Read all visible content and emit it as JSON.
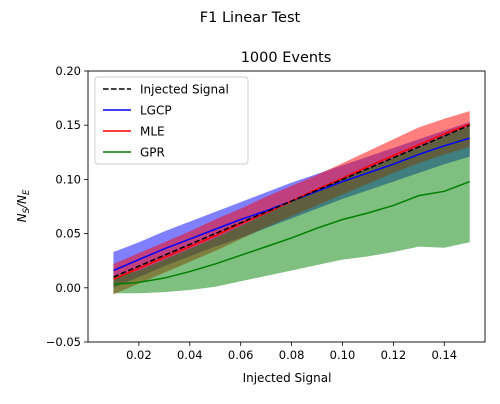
{
  "chart_data": {
    "type": "line",
    "suptitle": "F1 Linear Test",
    "title": "1000 Events",
    "xlabel": "Injected Signal",
    "ylabel_main": "N",
    "ylabel_num_sub": "S",
    "ylabel_slash": "/",
    "ylabel_den_sub": "E",
    "xlim": [
      0.0,
      0.156
    ],
    "ylim": [
      -0.05,
      0.2
    ],
    "xticks": [
      0.02,
      0.04,
      0.06,
      0.08,
      0.1,
      0.12,
      0.14
    ],
    "xtick_labels": [
      "0.02",
      "0.04",
      "0.06",
      "0.08",
      "0.10",
      "0.12",
      "0.14"
    ],
    "yticks": [
      -0.05,
      0.0,
      0.05,
      0.1,
      0.15,
      0.2
    ],
    "ytick_labels": [
      "−0.05",
      "0.00",
      "0.05",
      "0.10",
      "0.15",
      "0.20"
    ],
    "grid": false,
    "legend_position": "top-left",
    "x": [
      0.01,
      0.02,
      0.03,
      0.04,
      0.05,
      0.06,
      0.07,
      0.08,
      0.09,
      0.1,
      0.11,
      0.12,
      0.13,
      0.14,
      0.15
    ],
    "series": [
      {
        "name": "Injected Signal",
        "color": "#000000",
        "dash": true,
        "values": [
          0.01,
          0.02,
          0.03,
          0.04,
          0.05,
          0.06,
          0.07,
          0.08,
          0.09,
          0.1,
          0.11,
          0.12,
          0.13,
          0.14,
          0.15
        ]
      },
      {
        "name": "LGCP",
        "color": "#0000ff",
        "band_color": "#0000ff",
        "values": [
          0.016,
          0.026,
          0.036,
          0.045,
          0.054,
          0.063,
          0.071,
          0.08,
          0.089,
          0.098,
          0.106,
          0.114,
          0.123,
          0.131,
          0.138
        ],
        "lower": [
          0.0,
          0.01,
          0.02,
          0.029,
          0.038,
          0.046,
          0.055,
          0.064,
          0.073,
          0.082,
          0.09,
          0.098,
          0.106,
          0.114,
          0.121
        ],
        "upper": [
          0.033,
          0.042,
          0.052,
          0.061,
          0.07,
          0.079,
          0.088,
          0.097,
          0.105,
          0.113,
          0.121,
          0.129,
          0.137,
          0.145,
          0.153
        ]
      },
      {
        "name": "MLE",
        "color": "#ff0000",
        "band_color": "#ff0000",
        "values": [
          0.008,
          0.018,
          0.028,
          0.038,
          0.048,
          0.059,
          0.069,
          0.08,
          0.091,
          0.101,
          0.112,
          0.122,
          0.132,
          0.142,
          0.151
        ],
        "lower": [
          -0.006,
          0.004,
          0.014,
          0.024,
          0.034,
          0.045,
          0.056,
          0.066,
          0.076,
          0.086,
          0.096,
          0.106,
          0.115,
          0.123,
          0.13
        ],
        "upper": [
          0.022,
          0.032,
          0.042,
          0.052,
          0.063,
          0.073,
          0.084,
          0.094,
          0.104,
          0.115,
          0.126,
          0.137,
          0.148,
          0.156,
          0.163
        ]
      },
      {
        "name": "GPR",
        "color": "#008000",
        "band_color": "#008000",
        "values": [
          0.003,
          0.005,
          0.009,
          0.015,
          0.022,
          0.03,
          0.038,
          0.046,
          0.055,
          0.063,
          0.069,
          0.076,
          0.085,
          0.089,
          0.098
        ],
        "lower": [
          -0.005,
          -0.005,
          -0.004,
          -0.002,
          0.001,
          0.006,
          0.011,
          0.016,
          0.021,
          0.026,
          0.029,
          0.033,
          0.038,
          0.037,
          0.042
        ],
        "upper": [
          0.01,
          0.016,
          0.026,
          0.036,
          0.046,
          0.057,
          0.068,
          0.079,
          0.09,
          0.1,
          0.11,
          0.12,
          0.13,
          0.14,
          0.149
        ]
      }
    ]
  }
}
